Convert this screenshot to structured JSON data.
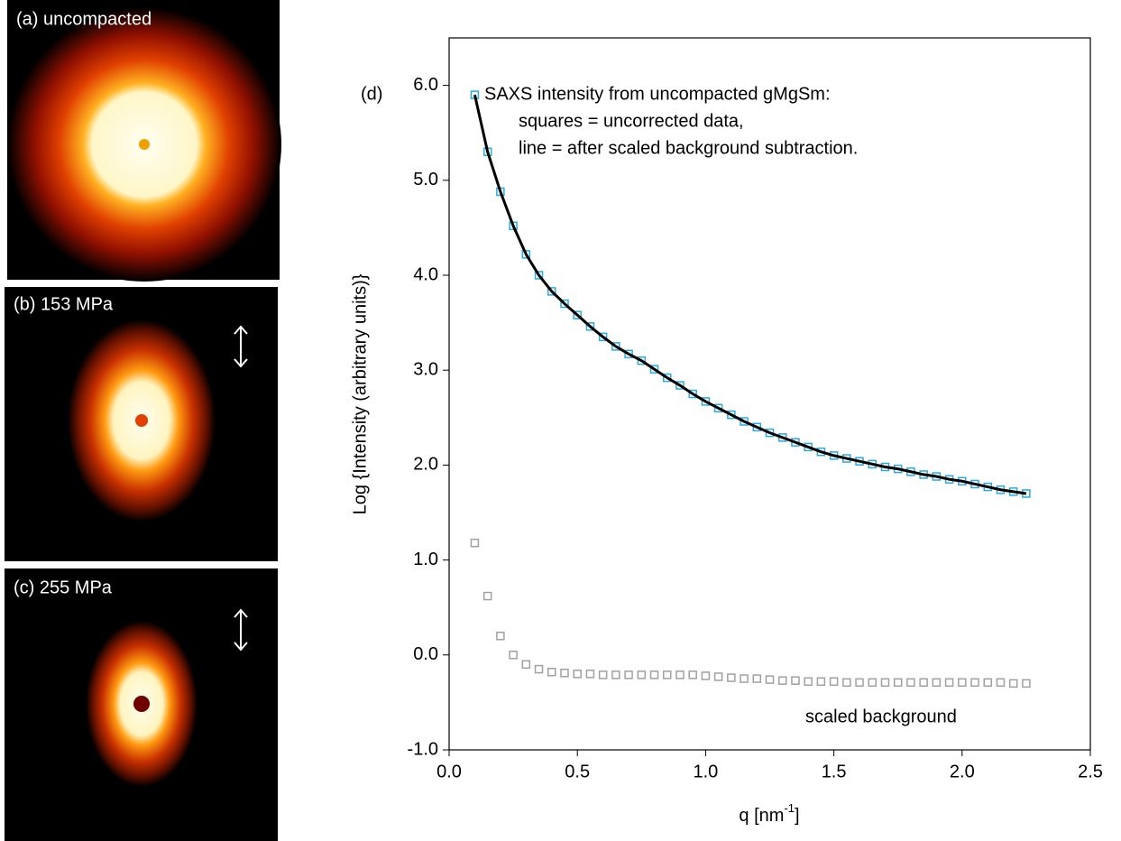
{
  "panels": [
    {
      "label": "(a) uncompacted"
    },
    {
      "label": "(b) 153 MPa"
    },
    {
      "label": "(c) 255 MPa"
    }
  ],
  "chart_data": {
    "type": "scatter",
    "panel_label": "(d)",
    "annotations": [
      "SAXS intensity from uncompacted gMgSm:",
      "squares = uncorrected data,",
      "line = after scaled background subtraction.",
      "scaled background"
    ],
    "y_label": "Log {Intensity (arbitrary units)}",
    "x_label": [
      "q [nm",
      "-1",
      "]"
    ],
    "x": [
      0.1,
      0.15,
      0.2,
      0.25,
      0.3,
      0.35,
      0.4,
      0.45,
      0.5,
      0.55,
      0.6,
      0.65,
      0.7,
      0.75,
      0.8,
      0.85,
      0.9,
      0.95,
      1.0,
      1.05,
      1.1,
      1.15,
      1.2,
      1.25,
      1.3,
      1.35,
      1.4,
      1.45,
      1.5,
      1.55,
      1.6,
      1.65,
      1.7,
      1.75,
      1.8,
      1.85,
      1.9,
      1.95,
      2.0,
      2.05,
      2.1,
      2.15,
      2.2,
      2.25
    ],
    "series": [
      {
        "marker": "square",
        "color": "#29a9e0",
        "values": [
          5.9,
          5.3,
          4.88,
          4.52,
          4.22,
          4.0,
          3.83,
          3.7,
          3.58,
          3.46,
          3.35,
          3.25,
          3.17,
          3.1,
          3.01,
          2.92,
          2.84,
          2.75,
          2.67,
          2.6,
          2.53,
          2.46,
          2.4,
          2.34,
          2.29,
          2.24,
          2.19,
          2.14,
          2.1,
          2.07,
          2.04,
          2.01,
          1.98,
          1.96,
          1.93,
          1.9,
          1.88,
          1.85,
          1.83,
          1.8,
          1.77,
          1.74,
          1.72,
          1.7
        ]
      },
      {
        "marker": "line",
        "color": "#000000",
        "values": [
          5.9,
          5.3,
          4.88,
          4.52,
          4.22,
          4.0,
          3.83,
          3.7,
          3.58,
          3.46,
          3.35,
          3.25,
          3.17,
          3.1,
          3.01,
          2.92,
          2.84,
          2.75,
          2.67,
          2.6,
          2.53,
          2.46,
          2.4,
          2.34,
          2.29,
          2.24,
          2.19,
          2.14,
          2.1,
          2.07,
          2.04,
          2.01,
          1.98,
          1.96,
          1.93,
          1.9,
          1.88,
          1.85,
          1.83,
          1.8,
          1.77,
          1.74,
          1.72,
          1.7
        ]
      },
      {
        "marker": "square",
        "color": "#a0a0a0",
        "values": [
          1.18,
          0.62,
          0.2,
          0.0,
          -0.1,
          -0.15,
          -0.18,
          -0.19,
          -0.2,
          -0.2,
          -0.21,
          -0.21,
          -0.21,
          -0.21,
          -0.21,
          -0.21,
          -0.21,
          -0.21,
          -0.22,
          -0.23,
          -0.24,
          -0.25,
          -0.25,
          -0.26,
          -0.27,
          -0.27,
          -0.28,
          -0.28,
          -0.28,
          -0.29,
          -0.29,
          -0.29,
          -0.29,
          -0.29,
          -0.29,
          -0.29,
          -0.29,
          -0.29,
          -0.29,
          -0.29,
          -0.29,
          -0.29,
          -0.3,
          -0.3
        ]
      }
    ],
    "xlim": [
      0,
      2.5
    ],
    "ylim": [
      -1,
      6.5
    ],
    "xticks": [
      {
        "value": 0,
        "label": "0.0"
      },
      0.5,
      {
        "value": 1,
        "label": "1.0"
      },
      1.5,
      {
        "value": 2,
        "label": "2.0"
      },
      2.5
    ],
    "yticks": [
      {
        "value": -1,
        "label": "-1.0"
      },
      {
        "value": 0,
        "label": "0.0"
      },
      {
        "value": 1,
        "label": "1.0"
      },
      {
        "value": 2,
        "label": "2.0"
      },
      {
        "value": 3,
        "label": "3.0"
      },
      {
        "value": 4,
        "label": "4.0"
      },
      {
        "value": 5,
        "label": "5.0"
      },
      {
        "value": 6,
        "label": "6.0"
      }
    ]
  }
}
